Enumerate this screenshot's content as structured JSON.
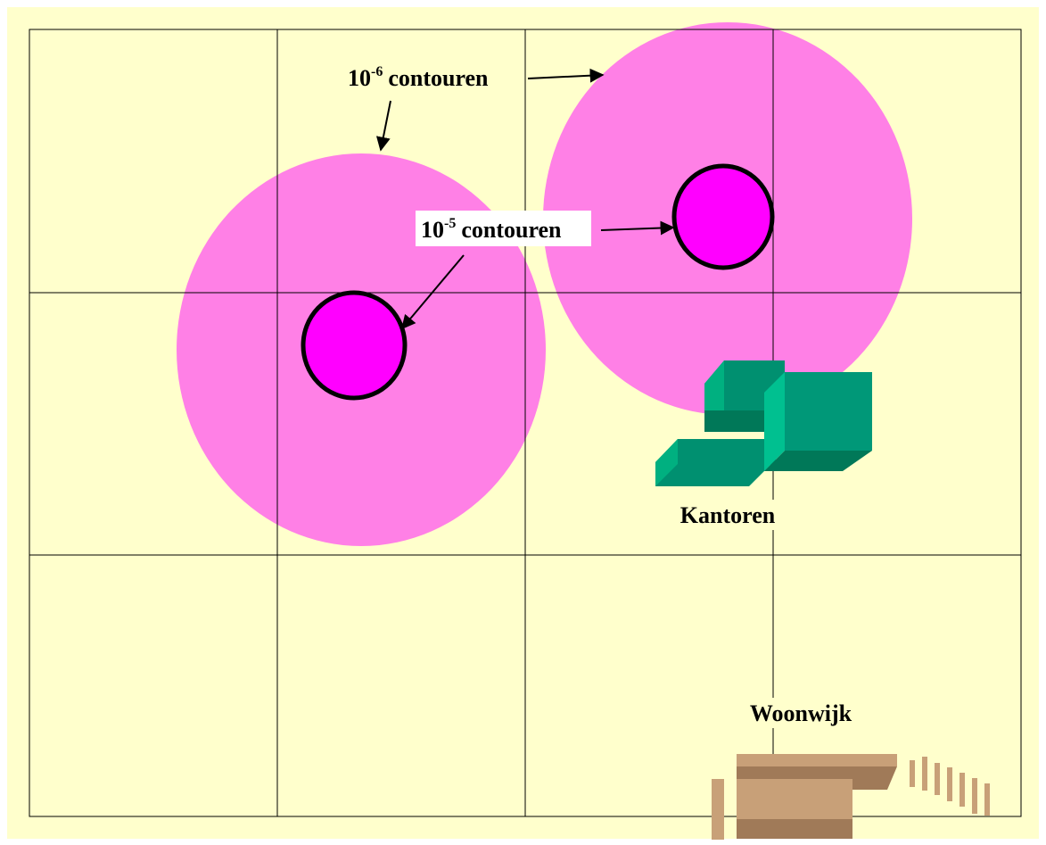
{
  "labels": [
    {
      "base": "10",
      "exponent": "-6",
      "text": "contouren"
    },
    {
      "base": "10",
      "exponent": "-5",
      "text": "contouren"
    }
  ],
  "areas": [
    "Kantoren",
    "Woonwijk"
  ]
}
